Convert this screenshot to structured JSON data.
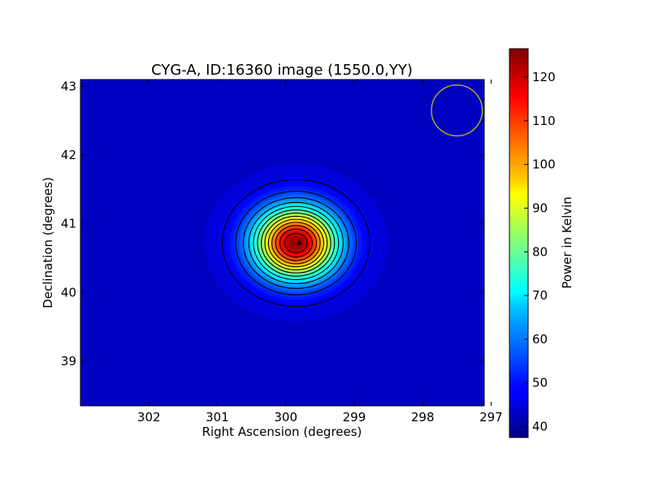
{
  "chart_data": {
    "type": "heatmap",
    "title": "CYG-A, ID:16360 image (1550.0,YY)",
    "xlabel": "Right Ascension (degrees)",
    "ylabel": "Declination (degrees)",
    "xlim": [
      303.0,
      297.1
    ],
    "ylim": [
      38.35,
      43.1
    ],
    "x_ticks": [
      302,
      301,
      300,
      299,
      298,
      297
    ],
    "y_ticks": [
      39,
      40,
      41,
      42,
      43
    ],
    "x_reversed": true,
    "colormap": "jet",
    "colorbar": {
      "label": "Power in Kelvin",
      "range": [
        37.5,
        126.5
      ],
      "ticks": [
        40,
        50,
        60,
        70,
        80,
        90,
        100,
        110,
        120
      ]
    },
    "background_level": 45,
    "source": {
      "center_ra": 299.85,
      "center_dec": 40.72,
      "peak": 126,
      "sigma_ra_deg": 0.42,
      "sigma_dec_deg": 0.36
    },
    "contour_levels": [
      42,
      48,
      54,
      60,
      66,
      72,
      78,
      84,
      90,
      96,
      102,
      108,
      114,
      120
    ],
    "peak_marker": {
      "ra": 299.8,
      "dec": 40.72
    },
    "beam_circle": {
      "ra": 297.5,
      "dec": 42.65,
      "radius_deg": 0.37,
      "color": "#c8c800"
    }
  }
}
